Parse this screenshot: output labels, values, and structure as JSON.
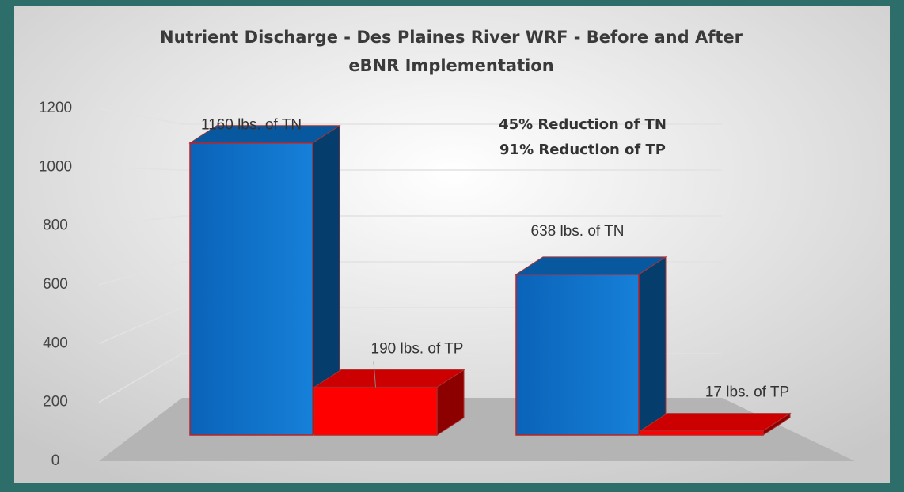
{
  "chart_data": {
    "type": "bar3d",
    "title": "Nutrient Discharge - Des Plaines River WRF - Before and After eBNR Implementation",
    "annotations": [
      "45% Reduction of TN",
      "91% Reduction of TP"
    ],
    "categories": [
      null,
      null
    ],
    "series": [
      {
        "name": "TN",
        "color": "#0a6fc7",
        "values": [
          1160,
          638
        ],
        "value_labels": [
          "1160 lbs. of TN",
          "638 lbs. of TN"
        ]
      },
      {
        "name": "TP",
        "color": "#ff0000",
        "values": [
          190,
          17
        ],
        "value_labels": [
          "190 lbs. of TP",
          "17 lbs. of TP"
        ]
      }
    ],
    "ylim": [
      0,
      1200
    ],
    "yticks": [
      0,
      200,
      400,
      600,
      800,
      1000,
      1200
    ],
    "grid": true
  }
}
